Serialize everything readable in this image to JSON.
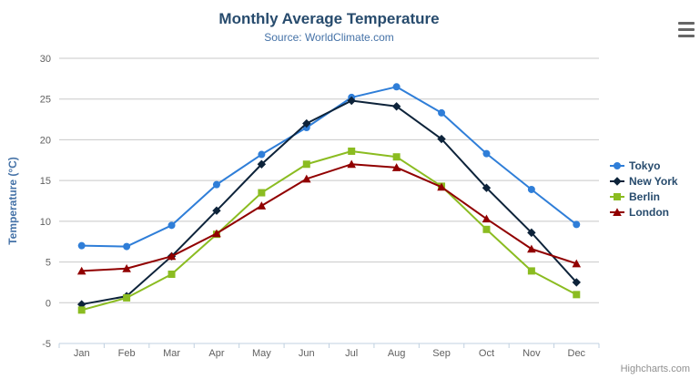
{
  "chart_data": {
    "type": "line",
    "title": "Monthly Average Temperature",
    "subtitle": "Source: WorldClimate.com",
    "categories": [
      "Jan",
      "Feb",
      "Mar",
      "Apr",
      "May",
      "Jun",
      "Jul",
      "Aug",
      "Sep",
      "Oct",
      "Nov",
      "Dec"
    ],
    "series": [
      {
        "name": "Tokyo",
        "color": "#2f7ed8",
        "marker": "circle",
        "values": [
          7.0,
          6.9,
          9.5,
          14.5,
          18.2,
          21.5,
          25.2,
          26.5,
          23.3,
          18.3,
          13.9,
          9.6
        ]
      },
      {
        "name": "New York",
        "color": "#0d233a",
        "marker": "diamond",
        "values": [
          -0.2,
          0.8,
          5.7,
          11.3,
          17.0,
          22.0,
          24.8,
          24.1,
          20.1,
          14.1,
          8.6,
          2.5
        ]
      },
      {
        "name": "Berlin",
        "color": "#8bbc21",
        "marker": "square",
        "values": [
          -0.9,
          0.6,
          3.5,
          8.4,
          13.5,
          17.0,
          18.6,
          17.9,
          14.3,
          9.0,
          3.9,
          1.0
        ]
      },
      {
        "name": "London",
        "color": "#910000",
        "marker": "triangle",
        "values": [
          3.9,
          4.2,
          5.7,
          8.5,
          11.9,
          15.2,
          17.0,
          16.6,
          14.2,
          10.3,
          6.6,
          4.8
        ]
      }
    ],
    "xlabel": "",
    "ylabel": "Temperature (°C)",
    "ylim": [
      -5,
      30
    ],
    "yticks": [
      -5,
      0,
      5,
      10,
      15,
      20,
      25,
      30
    ],
    "grid": true,
    "legend_position": "right",
    "colors": {
      "title": "#274b6d",
      "subtitle": "#4572a7",
      "axis_title": "#4572a7",
      "axis_labels": "#606060",
      "axis_line": "#c0d0e0",
      "grid_line": "#c8c8c8",
      "legend_text": "#274b6d",
      "credits_text": "#909090",
      "menu_icon": "#666666"
    }
  },
  "credits": "Highcharts.com"
}
